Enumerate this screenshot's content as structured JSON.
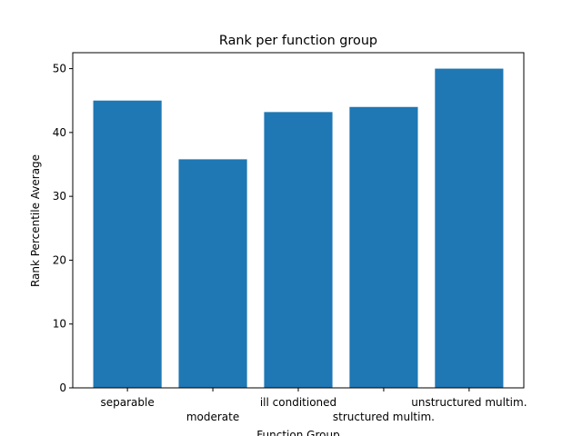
{
  "chart_data": {
    "type": "bar",
    "title": "Rank per function group",
    "xlabel": "Function Group",
    "ylabel": "Rank Percentile Average",
    "categories": [
      "separable",
      "moderate",
      "ill conditioned",
      "structured multim.",
      "unstructured multim."
    ],
    "values": [
      45.0,
      35.8,
      43.2,
      44.0,
      50.0
    ],
    "color": "#1f77b4",
    "ylim": [
      0,
      52.5
    ],
    "yticks": [
      0,
      10,
      20,
      30,
      40,
      50
    ],
    "grid": false
  }
}
